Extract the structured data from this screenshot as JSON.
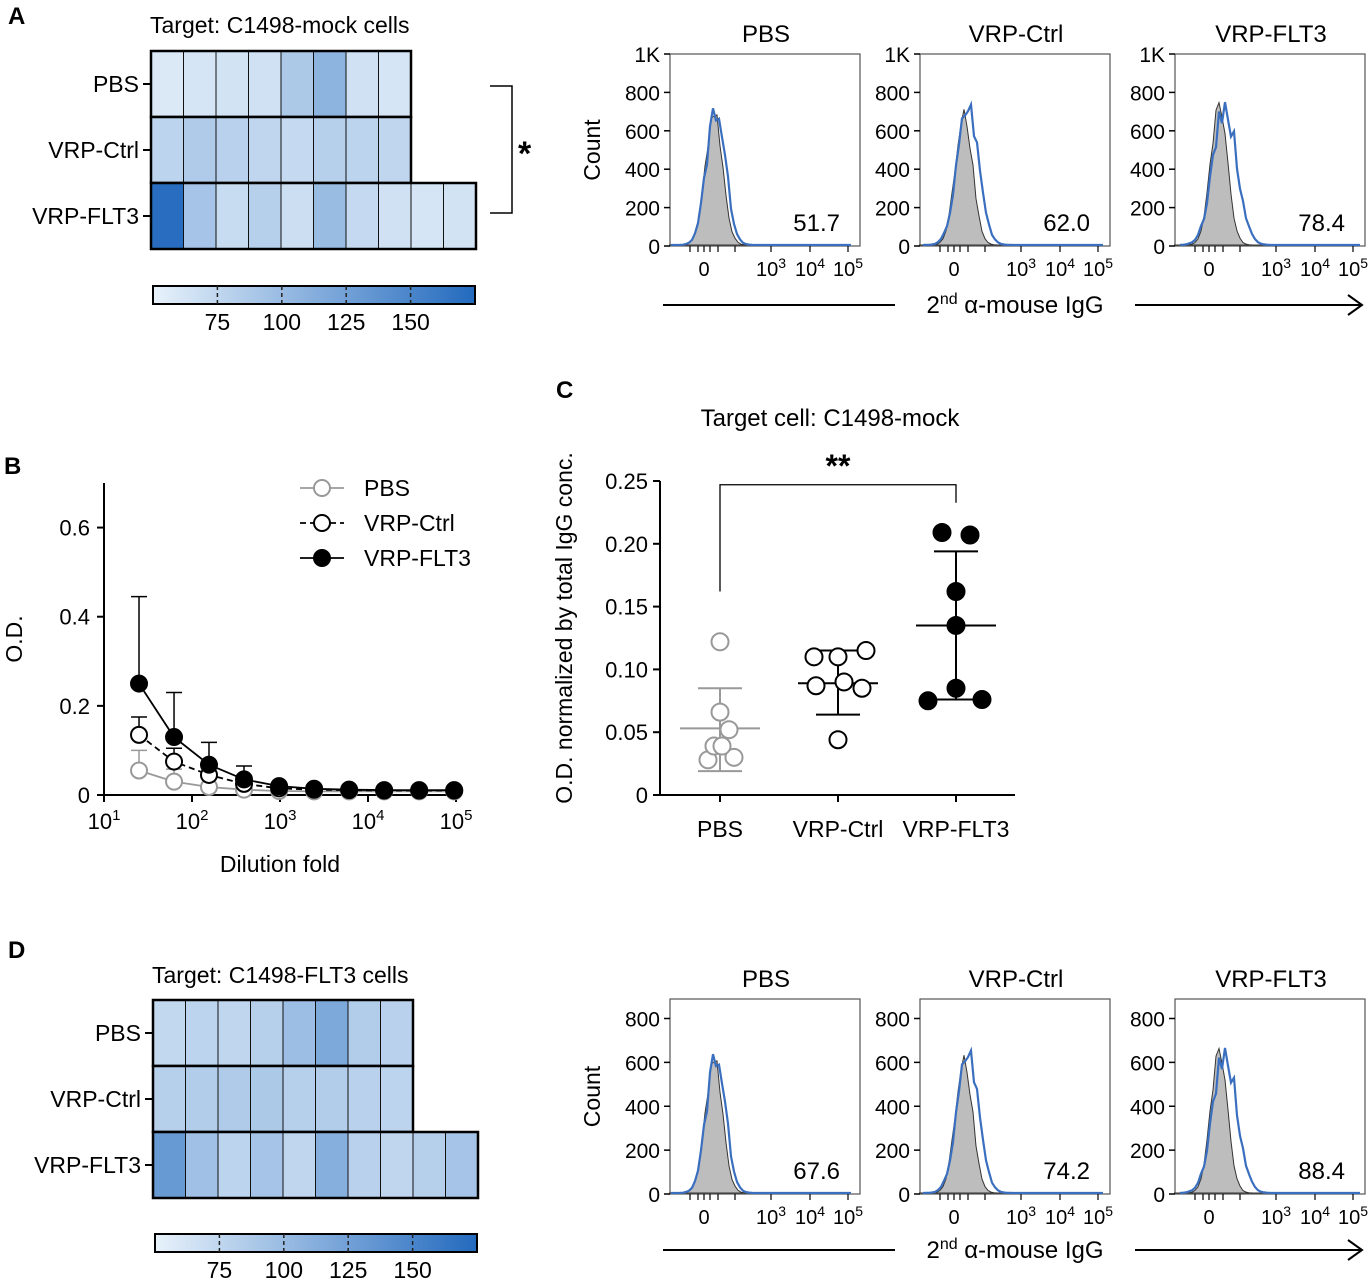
{
  "panels": {
    "a": "A",
    "b": "B",
    "c": "C",
    "d": "D"
  },
  "heatmap_a": {
    "title": "Target: C1498-mock cells",
    "rows": [
      {
        "label": "PBS",
        "values": [
          58,
          62,
          64,
          66,
          88,
          108,
          66,
          62
        ]
      },
      {
        "label": "VRP-Ctrl",
        "values": [
          78,
          86,
          80,
          76,
          72,
          82,
          78,
          76
        ]
      },
      {
        "label": "VRP-FLT3",
        "values": [
          172,
          92,
          70,
          82,
          68,
          100,
          72,
          66,
          62,
          64
        ]
      }
    ],
    "scale_ticks": [
      "75",
      "100",
      "125",
      "150"
    ],
    "significance": "*"
  },
  "heatmap_d": {
    "title": "Target: C1498-FLT3 cells",
    "rows": [
      {
        "label": "PBS",
        "values": [
          74,
          78,
          76,
          82,
          98,
          118,
          84,
          80
        ]
      },
      {
        "label": "VRP-Ctrl",
        "values": [
          82,
          84,
          86,
          88,
          82,
          84,
          80,
          78
        ]
      },
      {
        "label": "VRP-FLT3",
        "values": [
          132,
          96,
          78,
          92,
          76,
          112,
          80,
          76,
          82,
          92
        ]
      }
    ],
    "scale_ticks": [
      "75",
      "100",
      "125",
      "150"
    ]
  },
  "flow_a": {
    "y_label": "Count",
    "x_label_prefix": "2",
    "x_label_sup": "nd",
    "x_label_rest": " α-mouse IgG",
    "y_ticks": [
      "1K",
      "800",
      "600",
      "400",
      "200",
      "0"
    ],
    "x_ticks": {
      "zero": "0",
      "t3": "10",
      "t4": "10",
      "t5": "10",
      "e3": "3",
      "e4": "4",
      "e5": "5"
    },
    "plots": [
      {
        "title": "PBS",
        "value": "51.7"
      },
      {
        "title": "VRP-Ctrl",
        "value": "62.0"
      },
      {
        "title": "VRP-FLT3",
        "value": "78.4"
      }
    ]
  },
  "flow_d": {
    "y_label": "Count",
    "x_label_prefix": "2",
    "x_label_sup": "nd",
    "x_label_rest": " α-mouse IgG",
    "y_ticks": [
      "800",
      "600",
      "400",
      "200",
      "0"
    ],
    "x_ticks": {
      "zero": "0",
      "t3": "10",
      "t4": "10",
      "t5": "10",
      "e3": "3",
      "e4": "4",
      "e5": "5"
    },
    "plots": [
      {
        "title": "PBS",
        "value": "67.6"
      },
      {
        "title": "VRP-Ctrl",
        "value": "74.2"
      },
      {
        "title": "VRP-FLT3",
        "value": "88.4"
      }
    ]
  },
  "chart_data": [
    {
      "type": "line",
      "panel": "B",
      "title": "",
      "xlabel": "Dilution fold",
      "ylabel": "O.D.",
      "xscale": "log10",
      "xlim": [
        10,
        100000
      ],
      "ylim": [
        0,
        0.7
      ],
      "x_tick_labels": [
        {
          "base": "10",
          "exp": "1"
        },
        {
          "base": "10",
          "exp": "2"
        },
        {
          "base": "10",
          "exp": "3"
        },
        {
          "base": "10",
          "exp": "4"
        },
        {
          "base": "10",
          "exp": "5"
        }
      ],
      "y_tick_labels": [
        "0",
        "0.2",
        "0.4",
        "0.6"
      ],
      "legend_position": "top-right",
      "x": [
        25,
        62.5,
        156,
        390,
        977,
        2441,
        6103,
        15259,
        38147,
        95367
      ],
      "series": [
        {
          "name": "PBS",
          "values": [
            0.055,
            0.03,
            0.018,
            0.012,
            0.009,
            0.008,
            0.008,
            0.008,
            0.008,
            0.008
          ],
          "errors": [
            0.045,
            0.028,
            0.02,
            0.012,
            0.004,
            0.003,
            0.003,
            0.003,
            0.003,
            0.003
          ],
          "color": "#999999",
          "marker": "open",
          "dash": false
        },
        {
          "name": "VRP-Ctrl",
          "values": [
            0.135,
            0.075,
            0.045,
            0.025,
            0.015,
            0.012,
            0.011,
            0.01,
            0.01,
            0.01
          ],
          "errors": [
            0.04,
            0.03,
            0.02,
            0.01,
            0.005,
            0.004,
            0.004,
            0.004,
            0.004,
            0.004
          ],
          "color": "#000000",
          "marker": "open",
          "dash": true
        },
        {
          "name": "VRP-FLT3",
          "values": [
            0.25,
            0.13,
            0.068,
            0.035,
            0.02,
            0.014,
            0.012,
            0.011,
            0.011,
            0.011
          ],
          "errors": [
            0.195,
            0.1,
            0.05,
            0.03,
            0.006,
            0.004,
            0.004,
            0.004,
            0.004,
            0.004
          ],
          "color": "#000000",
          "marker": "filled",
          "dash": false
        }
      ]
    },
    {
      "type": "scatter",
      "panel": "C",
      "title": "Target cell: C1498-mock",
      "xlabel": "",
      "ylabel": "O.D. normalized by total IgG conc.",
      "ylim": [
        0,
        0.25
      ],
      "y_tick_labels": [
        "0",
        "0.05",
        "0.10",
        "0.15",
        "0.20",
        "0.25"
      ],
      "categories": [
        "PBS",
        "VRP-Ctrl",
        "VRP-FLT3"
      ],
      "significance": {
        "groups": [
          "PBS",
          "VRP-FLT3"
        ],
        "label": "**",
        "at": 0.247
      },
      "groups": [
        {
          "name": "PBS",
          "points": [
            [
              0,
              0.122
            ],
            [
              -0.12,
              0.028
            ],
            [
              -0.06,
              0.039
            ],
            [
              0,
              0.066
            ],
            [
              0.14,
              0.03
            ],
            [
              0.02,
              0.039
            ],
            [
              0.09,
              0.052
            ]
          ],
          "mean": 0.053,
          "sd_low": 0.019,
          "sd_high": 0.085,
          "color": "#999999",
          "filled": false
        },
        {
          "name": "VRP-Ctrl",
          "points": [
            [
              -0.24,
              0.11
            ],
            [
              0,
              0.11
            ],
            [
              0.28,
              0.115
            ],
            [
              -0.22,
              0.087
            ],
            [
              0.06,
              0.09
            ],
            [
              0.24,
              0.085
            ],
            [
              0,
              0.044
            ]
          ],
          "mean": 0.089,
          "sd_low": 0.064,
          "sd_high": 0.115,
          "color": "#000000",
          "filled": true,
          "open": true
        },
        {
          "name": "VRP-FLT3",
          "points": [
            [
              -0.14,
              0.209
            ],
            [
              0.14,
              0.207
            ],
            [
              0,
              0.162
            ],
            [
              0,
              0.135
            ],
            [
              0,
              0.085
            ],
            [
              -0.28,
              0.075
            ],
            [
              0.26,
              0.076
            ]
          ],
          "mean": 0.135,
          "sd_low": 0.076,
          "sd_high": 0.194,
          "color": "#000000",
          "filled": true
        }
      ]
    }
  ]
}
